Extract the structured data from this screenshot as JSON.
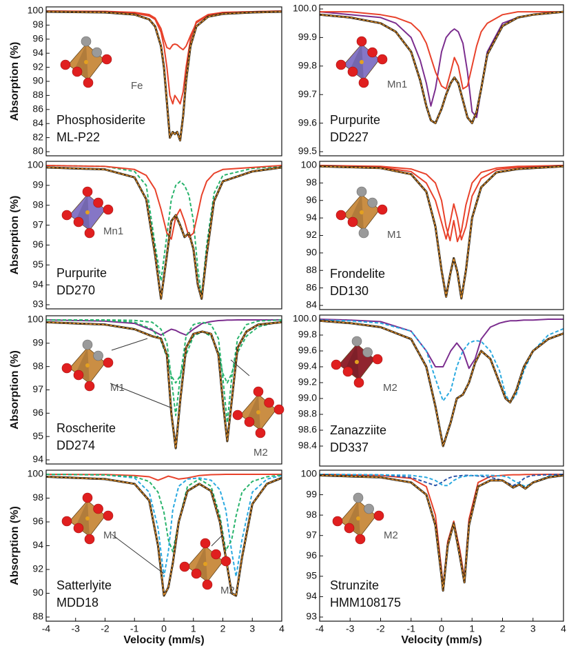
{
  "chart_data": [
    {
      "type": "line",
      "name": "Phosphosiderite",
      "sample": "ML-P22",
      "site_labels": [
        "Fe"
      ],
      "y_label": "Absorption (%)",
      "xlim": [
        -4,
        4
      ],
      "ylim": [
        80,
        100
      ],
      "yticks": [
        100,
        98,
        96,
        94,
        92,
        90,
        88,
        86,
        84,
        82,
        80
      ],
      "x": [
        -4,
        -2,
        -1,
        -0.5,
        -0.3,
        -0.1,
        0,
        0.1,
        0.2,
        0.3,
        0.37,
        0.45,
        0.55,
        0.65,
        0.75,
        0.9,
        1.1,
        1.5,
        2,
        3,
        4
      ],
      "series": [
        {
          "style": "solid",
          "color": "#e8412a",
          "values": [
            100,
            99.9,
            99.7,
            99.3,
            98.8,
            97,
            95,
            92,
            88,
            86.8,
            88,
            87.5,
            86.8,
            88.5,
            92,
            96,
            98.5,
            99.5,
            99.8,
            99.9,
            100
          ]
        },
        {
          "style": "solid",
          "color": "#e8412a",
          "values": [
            100,
            99.95,
            99.8,
            99.5,
            99,
            97.5,
            96,
            94.8,
            94.6,
            95.2,
            95.3,
            95.2,
            94.8,
            94.5,
            95,
            96.5,
            98.3,
            99.4,
            99.8,
            99.9,
            100
          ]
        },
        {
          "style": "fit",
          "color": "#f39a2c",
          "values": [
            99.9,
            99.8,
            99.5,
            98.8,
            97.8,
            95,
            92,
            87,
            82,
            82.8,
            82.5,
            82.8,
            81.6,
            85,
            90,
            95,
            97.8,
            99.2,
            99.6,
            99.8,
            99.9
          ]
        }
      ]
    },
    {
      "type": "line",
      "name": "Purpurite",
      "sample": "DD227",
      "site_labels": [
        "Mn1"
      ],
      "xlim": [
        -4,
        4
      ],
      "ylim": [
        99.5,
        100
      ],
      "yticks": [
        {
          "value": 100,
          "label": "100.0"
        },
        99.9,
        99.8,
        99.7,
        99.6,
        99.5
      ],
      "x": [
        -4,
        -3,
        -2,
        -1.5,
        -1,
        -0.7,
        -0.5,
        -0.35,
        -0.2,
        0,
        0.15,
        0.3,
        0.42,
        0.55,
        0.7,
        0.85,
        1.0,
        1.15,
        1.3,
        1.5,
        2,
        2.5,
        3,
        4
      ],
      "series": [
        {
          "style": "solid",
          "color": "#7b2d8e",
          "values": [
            99.99,
            99.98,
            99.97,
            99.95,
            99.9,
            99.82,
            99.74,
            99.66,
            99.72,
            99.85,
            99.9,
            99.92,
            99.93,
            99.92,
            99.88,
            99.78,
            99.64,
            99.62,
            99.72,
            99.85,
            99.95,
            99.97,
            99.98,
            99.99
          ]
        },
        {
          "style": "solid",
          "color": "#e8412a",
          "values": [
            99.99,
            99.99,
            99.98,
            99.97,
            99.95,
            99.92,
            99.88,
            99.83,
            99.78,
            99.73,
            99.72,
            99.78,
            99.83,
            99.8,
            99.72,
            99.73,
            99.8,
            99.87,
            99.92,
            99.95,
            99.98,
            99.99,
            99.99,
            99.99
          ]
        },
        {
          "style": "fit",
          "color": "#f39a2c",
          "values": [
            99.98,
            99.97,
            99.95,
            99.92,
            99.85,
            99.75,
            99.66,
            99.61,
            99.6,
            99.65,
            99.7,
            99.74,
            99.76,
            99.74,
            99.68,
            99.62,
            99.6,
            99.64,
            99.72,
            99.84,
            99.94,
            99.97,
            99.98,
            99.99
          ]
        }
      ]
    },
    {
      "type": "line",
      "name": "Purpurite",
      "sample": "DD270",
      "site_labels": [
        "Mn1"
      ],
      "y_label": "Absorption (%)",
      "xlim": [
        -4,
        4
      ],
      "ylim": [
        93,
        100
      ],
      "yticks": [
        100,
        99,
        98,
        97,
        96,
        95,
        94,
        93
      ],
      "x": [
        -4,
        -2,
        -1,
        -0.6,
        -0.3,
        -0.1,
        0.1,
        0.25,
        0.4,
        0.55,
        0.7,
        0.85,
        1.0,
        1.15,
        1.28,
        1.45,
        1.7,
        2,
        3,
        4
      ],
      "series": [
        {
          "style": "dashed",
          "color": "#27b36b",
          "values": [
            100,
            99.95,
            99.7,
            99,
            96,
            94.2,
            96.5,
            98.3,
            99,
            99.2,
            99,
            98.5,
            97.2,
            94.8,
            93.4,
            96,
            98.6,
            99.5,
            99.85,
            99.95
          ]
        },
        {
          "style": "solid",
          "color": "#e8412a",
          "values": [
            100,
            99.95,
            99.8,
            99.5,
            98.8,
            97.8,
            96.6,
            96.3,
            97.4,
            97.8,
            97.2,
            96.4,
            96.6,
            97.6,
            98.5,
            99.2,
            99.6,
            99.8,
            99.9,
            100
          ]
        },
        {
          "style": "fit",
          "color": "#f39a2c",
          "values": [
            99.9,
            99.8,
            99.4,
            98.3,
            95.5,
            93.3,
            95.5,
            97.2,
            97.5,
            97,
            96.4,
            96.6,
            95.8,
            94,
            93.3,
            95.5,
            98.2,
            99.2,
            99.7,
            99.9
          ]
        }
      ]
    },
    {
      "type": "line",
      "name": "Frondelite",
      "sample": "DD130",
      "site_labels": [
        "M1"
      ],
      "xlim": [
        -4,
        4
      ],
      "ylim": [
        84,
        100
      ],
      "yticks": [
        100,
        98,
        96,
        94,
        92,
        90,
        88,
        86,
        84
      ],
      "x": [
        -4,
        -2,
        -1,
        -0.5,
        -0.2,
        0,
        0.15,
        0.28,
        0.4,
        0.52,
        0.65,
        0.8,
        1.0,
        1.3,
        1.8,
        2.5,
        4
      ],
      "series": [
        {
          "style": "solid",
          "color": "#e8412a",
          "values": [
            100,
            99.8,
            99.3,
            98,
            96,
            93.5,
            91.6,
            93.5,
            95.6,
            94,
            91.5,
            93,
            96.5,
            98.5,
            99.5,
            99.8,
            100
          ]
        },
        {
          "style": "solid",
          "color": "#e8412a",
          "values": [
            100,
            99.9,
            99.6,
            99,
            98,
            96,
            93,
            91.4,
            93.7,
            91.3,
            92.5,
            95.5,
            98,
            99.2,
            99.7,
            99.9,
            100
          ]
        },
        {
          "style": "fit",
          "color": "#f39a2c",
          "values": [
            99.9,
            99.7,
            99,
            97,
            93,
            88,
            85,
            87.5,
            89.4,
            87.8,
            84.8,
            88,
            94,
            97.5,
            99.2,
            99.6,
            99.9
          ]
        }
      ]
    },
    {
      "type": "line",
      "name": "Roscherite",
      "sample": "DD274",
      "site_labels": [
        "M1",
        "M2"
      ],
      "y_label": "Absorption (%)",
      "xlim": [
        -4,
        4
      ],
      "ylim": [
        94,
        100
      ],
      "yticks": [
        100,
        99,
        98,
        97,
        96,
        95,
        94
      ],
      "x": [
        -4,
        -2,
        -1,
        -0.4,
        -0.1,
        0.1,
        0.25,
        0.4,
        0.55,
        0.75,
        1.0,
        1.3,
        1.6,
        1.85,
        2.0,
        2.15,
        2.3,
        2.5,
        2.8,
        3.2,
        4
      ],
      "series": [
        {
          "style": "solid",
          "color": "#7b2d8e",
          "values": [
            100,
            99.95,
            99.85,
            99.55,
            99.35,
            99.5,
            99.6,
            99.55,
            99.45,
            99.35,
            99.6,
            99.85,
            99.93,
            99.97,
            99.98,
            99.99,
            99.99,
            100,
            100,
            100,
            100
          ]
        },
        {
          "style": "dashed",
          "color": "#27b36b",
          "values": [
            100,
            100,
            99.98,
            99.9,
            99.6,
            99,
            97.5,
            95.9,
            97.5,
            99.3,
            99.8,
            99.9,
            99.8,
            99.2,
            97.5,
            95.6,
            97.5,
            99.2,
            99.8,
            99.95,
            100
          ]
        },
        {
          "style": "dashed",
          "color": "#27b36b",
          "values": [
            100,
            99.98,
            99.9,
            99.6,
            99.1,
            98.4,
            97.6,
            97.3,
            97.6,
            98.5,
            99.3,
            99.5,
            99.3,
            98.6,
            97.7,
            97.3,
            97.7,
            98.6,
            99.3,
            99.7,
            99.95
          ]
        },
        {
          "style": "fit",
          "color": "#f39a2c",
          "values": [
            99.9,
            99.8,
            99.6,
            99.3,
            99.2,
            98.5,
            96,
            94.5,
            96.5,
            98.8,
            99.4,
            99.5,
            99.4,
            98.5,
            96.5,
            94.8,
            96.5,
            98.8,
            99.5,
            99.8,
            99.9
          ]
        }
      ]
    },
    {
      "type": "line",
      "name": "Zanazziite",
      "sample": "DD337",
      "site_labels": [
        "M2"
      ],
      "xlim": [
        -4,
        4
      ],
      "ylim": [
        98.2,
        100
      ],
      "yticks": [
        {
          "value": 100,
          "label": "100.0"
        },
        99.8,
        99.6,
        99.4,
        99.2,
        {
          "value": 99,
          "label": "99.0"
        },
        98.8,
        98.6,
        98.4
      ],
      "x": [
        -4,
        -3,
        -2,
        -1,
        -0.5,
        -0.2,
        0.05,
        0.3,
        0.5,
        0.7,
        0.9,
        1.1,
        1.3,
        1.6,
        1.9,
        2.1,
        2.25,
        2.45,
        2.7,
        3.0,
        3.5,
        4
      ],
      "series": [
        {
          "style": "solid",
          "color": "#7b2d8e",
          "values": [
            100,
            99.99,
            99.97,
            99.85,
            99.6,
            99.4,
            99.4,
            99.6,
            99.7,
            99.6,
            99.38,
            99.5,
            99.75,
            99.9,
            99.95,
            99.97,
            99.98,
            99.98,
            99.99,
            99.99,
            100,
            100
          ]
        },
        {
          "style": "dashed",
          "color": "#29a9e0",
          "values": [
            99.99,
            99.98,
            99.95,
            99.85,
            99.6,
            99.25,
            98.97,
            99.1,
            99.4,
            99.6,
            99.7,
            99.73,
            99.72,
            99.6,
            99.35,
            99.05,
            98.95,
            99.05,
            99.35,
            99.6,
            99.8,
            99.88
          ]
        },
        {
          "style": "fit",
          "color": "#f39a2c",
          "values": [
            99.98,
            99.95,
            99.9,
            99.75,
            99.4,
            98.9,
            98.4,
            98.7,
            99,
            99.05,
            99.2,
            99.45,
            99.6,
            99.5,
            99.2,
            99,
            98.95,
            99.1,
            99.4,
            99.6,
            99.75,
            99.82
          ]
        }
      ]
    },
    {
      "type": "line",
      "name": "Satterlyite",
      "sample": "MDD18",
      "site_labels": [
        "M1",
        "M2"
      ],
      "y_label": "Absorption (%)",
      "x_label": "Velocity (mm/s)",
      "xlim": [
        -4,
        4
      ],
      "xticks": [
        -4,
        -3,
        -2,
        -1,
        0,
        1,
        2,
        3,
        4
      ],
      "ylim": [
        88,
        100
      ],
      "yticks": [
        100,
        98,
        96,
        94,
        92,
        90,
        88
      ],
      "x": [
        -4,
        -2,
        -1,
        -0.5,
        -0.2,
        0,
        0.15,
        0.3,
        0.5,
        0.8,
        1.2,
        1.6,
        1.9,
        2.1,
        2.3,
        2.45,
        2.65,
        3,
        3.5,
        4
      ],
      "series": [
        {
          "style": "solid",
          "color": "#e8412a",
          "values": [
            100,
            99.98,
            99.9,
            99.8,
            99.5,
            99.7,
            99.85,
            99.75,
            99.6,
            99.7,
            99.9,
            99.97,
            99.99,
            100,
            100,
            100,
            100,
            100,
            100,
            100
          ]
        },
        {
          "style": "dashed",
          "color": "#29a9e0",
          "values": [
            100,
            99.95,
            99.7,
            98.5,
            95.5,
            91.4,
            93.5,
            97,
            99,
            99.6,
            99.7,
            99.5,
            98.7,
            97,
            93.5,
            91.4,
            94.5,
            98.5,
            99.6,
            99.9
          ]
        },
        {
          "style": "dashed",
          "color": "#27b36b",
          "values": [
            100,
            99.95,
            99.8,
            99.4,
            98.5,
            96.8,
            94.5,
            93.5,
            96,
            99,
            99.6,
            99,
            96.5,
            93.6,
            94.5,
            96.5,
            98.5,
            99.4,
            99.8,
            99.95
          ]
        },
        {
          "style": "fit",
          "color": "#f39a2c",
          "values": [
            99.8,
            99.6,
            99.2,
            97.8,
            94,
            89.8,
            90.5,
            92.5,
            96,
            98.6,
            99.2,
            98.6,
            96,
            93,
            90,
            89.8,
            93,
            97.5,
            99.2,
            99.7
          ]
        }
      ]
    },
    {
      "type": "line",
      "name": "Strunzite",
      "sample": "HMM108175",
      "site_labels": [
        "M2"
      ],
      "x_label": "Velocity (mm/s)",
      "xlim": [
        -4,
        4
      ],
      "xticks": [
        -4,
        -3,
        -2,
        -1,
        0,
        1,
        2,
        3,
        4
      ],
      "ylim": [
        93,
        100
      ],
      "yticks": [
        100,
        99,
        98,
        97,
        96,
        95,
        94,
        93
      ],
      "x": [
        -4,
        -2,
        -1,
        -0.5,
        -0.2,
        0,
        0.05,
        0.2,
        0.4,
        0.6,
        0.75,
        0.9,
        1.2,
        1.6,
        2.0,
        2.2,
        2.35,
        2.55,
        2.75,
        3.0,
        3.5,
        4
      ],
      "series": [
        {
          "style": "solid",
          "color": "#e8412a",
          "values": [
            100,
            99.95,
            99.8,
            99.4,
            98,
            95.3,
            94.5,
            96.7,
            97.7,
            96.3,
            94.9,
            97.8,
            99.6,
            99.9,
            99.95,
            99.97,
            99.98,
            99.98,
            99.99,
            99.99,
            100,
            100
          ]
        },
        {
          "style": "dashed",
          "color": "#2b55a8",
          "values": [
            100,
            99.97,
            99.85,
            99.6,
            99.45,
            99.6,
            99.65,
            99.8,
            99.9,
            99.93,
            99.95,
            99.95,
            99.92,
            99.85,
            99.7,
            99.55,
            99.45,
            99.6,
            99.85,
            99.95,
            99.98,
            100
          ]
        },
        {
          "style": "dashed",
          "color": "#29a9e0",
          "values": [
            100,
            99.98,
            99.95,
            99.85,
            99.7,
            99.5,
            99.45,
            99.45,
            99.7,
            99.85,
            99.9,
            99.93,
            99.95,
            99.95,
            99.92,
            99.85,
            99.7,
            99.55,
            99.4,
            99.6,
            99.9,
            99.97
          ]
        },
        {
          "style": "fit",
          "color": "#f39a2c",
          "values": [
            99.95,
            99.85,
            99.6,
            99,
            97.5,
            95,
            94.3,
            96.5,
            97.6,
            96,
            94.7,
            97.5,
            99.4,
            99.7,
            99.7,
            99.5,
            99.35,
            99.5,
            99.3,
            99.6,
            99.85,
            99.95
          ]
        }
      ]
    }
  ]
}
